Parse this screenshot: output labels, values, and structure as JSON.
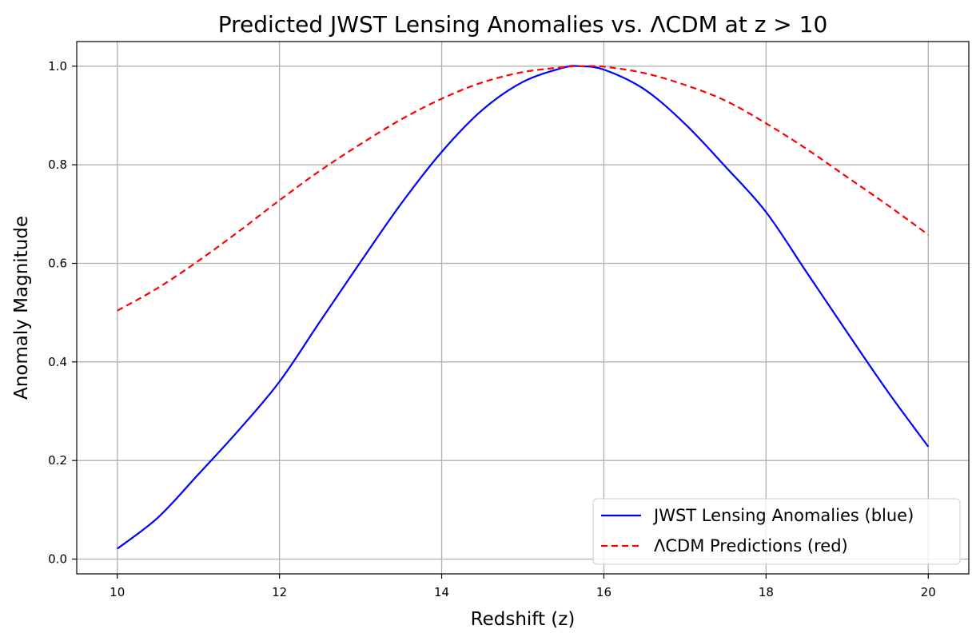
{
  "chart_data": {
    "type": "line",
    "title": "Predicted JWST Lensing Anomalies vs. ΛCDM at z > 10",
    "xlabel": "Redshift (z)",
    "ylabel": "Anomaly Magnitude",
    "xlim": [
      9.5,
      20.5
    ],
    "ylim": [
      -0.03,
      1.05
    ],
    "x_ticks": [
      10,
      12,
      14,
      16,
      18,
      20
    ],
    "x_tick_labels": [
      "10",
      "12",
      "14",
      "16",
      "18",
      "20"
    ],
    "y_ticks": [
      0.0,
      0.2,
      0.4,
      0.6,
      0.8,
      1.0
    ],
    "y_tick_labels": [
      "0.0",
      "0.2",
      "0.4",
      "0.6",
      "0.8",
      "1.0"
    ],
    "grid": true,
    "legend_position": "lower-right",
    "x": [
      10.0,
      10.5,
      11.0,
      11.5,
      12.0,
      12.5,
      13.0,
      13.5,
      14.0,
      14.5,
      15.0,
      15.5,
      15.7,
      16.0,
      16.5,
      17.0,
      17.5,
      18.0,
      18.5,
      19.0,
      19.5,
      20.0
    ],
    "series": [
      {
        "name": "JWST Lensing Anomalies (blue)",
        "color": "#0000ff",
        "style": "solid",
        "values": [
          0.021,
          0.084,
          0.172,
          0.262,
          0.36,
          0.482,
          0.603,
          0.721,
          0.826,
          0.911,
          0.968,
          0.997,
          1.0,
          0.993,
          0.953,
          0.883,
          0.796,
          0.704,
          0.582,
          0.46,
          0.34,
          0.228
        ]
      },
      {
        "name": "ΛCDM Predictions (red)",
        "color": "#ff0000",
        "style": "dashed",
        "values": [
          0.504,
          0.55,
          0.605,
          0.665,
          0.728,
          0.788,
          0.842,
          0.892,
          0.934,
          0.967,
          0.988,
          0.998,
          1.0,
          0.999,
          0.986,
          0.962,
          0.93,
          0.884,
          0.832,
          0.775,
          0.718,
          0.658
        ]
      }
    ]
  }
}
